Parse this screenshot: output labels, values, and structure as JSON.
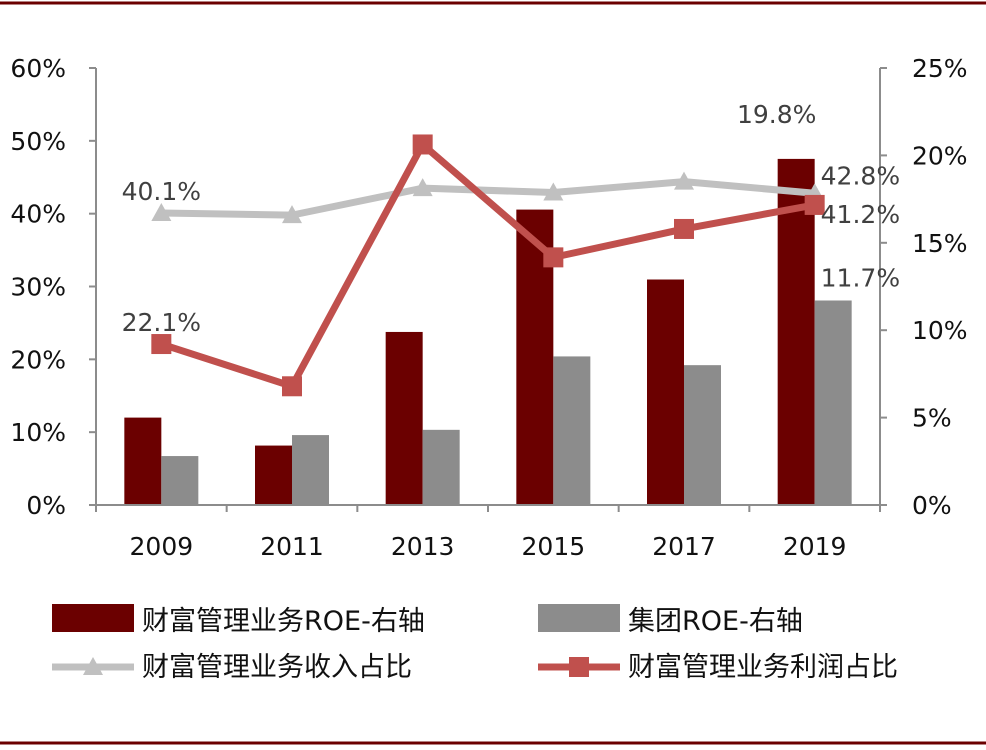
{
  "chart_data": {
    "type": "bar",
    "categories": [
      "2009",
      "2011",
      "2013",
      "2015",
      "2017",
      "2019"
    ],
    "left_axis": {
      "ticks": [
        "0%",
        "10%",
        "20%",
        "30%",
        "40%",
        "50%",
        "60%"
      ],
      "ylim": [
        0,
        60
      ]
    },
    "right_axis": {
      "ticks": [
        "0%",
        "5%",
        "10%",
        "15%",
        "20%",
        "25%"
      ],
      "ylim": [
        0,
        25
      ]
    },
    "series": [
      {
        "name": "财富管理业务ROE-右轴",
        "kind": "bar",
        "axis": "right",
        "color": "#6b0000",
        "values": [
          5.0,
          3.4,
          9.9,
          16.9,
          12.9,
          19.8
        ]
      },
      {
        "name": "集团ROE-右轴",
        "kind": "bar",
        "axis": "right",
        "color": "#8c8c8c",
        "values": [
          2.8,
          4.0,
          4.3,
          8.5,
          8.0,
          11.7
        ]
      },
      {
        "name": "财富管理业务收入占比",
        "kind": "line",
        "axis": "left",
        "color": "#c0c0c0",
        "marker": "triangle",
        "values": [
          40.1,
          39.8,
          43.5,
          42.9,
          44.4,
          42.8
        ]
      },
      {
        "name": "财富管理业务利润占比",
        "kind": "line",
        "axis": "left",
        "color": "#c0504d",
        "marker": "square",
        "values": [
          22.1,
          16.3,
          49.5,
          34.0,
          37.9,
          41.2
        ]
      }
    ],
    "data_labels": [
      {
        "text": "19.8%"
      },
      {
        "text": "40.1%"
      },
      {
        "text": "42.8%"
      },
      {
        "text": "41.2%"
      },
      {
        "text": "11.7%"
      },
      {
        "text": "22.1%"
      }
    ],
    "legend_position": "bottom",
    "grid": false
  }
}
